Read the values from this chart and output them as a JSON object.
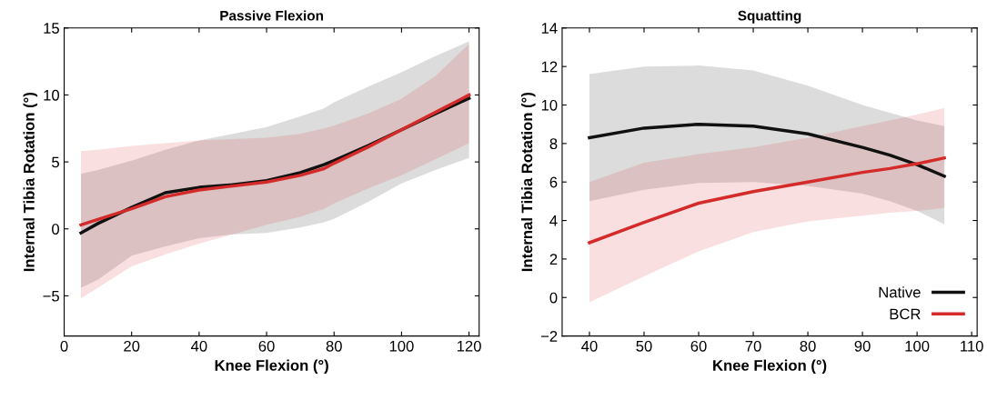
{
  "chart_data": [
    {
      "type": "line",
      "title": "Passive Flexion",
      "xlabel": "Knee Flexion (°)",
      "ylabel": "Internal Tibia Rotation (°)",
      "xlim": [
        0,
        123
      ],
      "ylim": [
        -8,
        15
      ],
      "xticks": [
        0,
        20,
        40,
        60,
        80,
        100,
        120
      ],
      "yticks": [
        {
          "value": -5,
          "label": "−5"
        },
        0,
        5,
        10,
        15
      ],
      "grid": false,
      "legend": false,
      "series": [
        {
          "color": "#111111",
          "x": [
            5,
            10,
            20,
            30,
            40,
            50,
            60,
            70,
            77,
            80,
            90,
            100,
            110,
            120
          ],
          "values": [
            -0.3,
            0.4,
            1.6,
            2.7,
            3.1,
            3.3,
            3.6,
            4.2,
            4.8,
            5.1,
            6.2,
            7.4,
            8.6,
            9.75
          ],
          "lower": [
            -4.4,
            -3.8,
            -2.0,
            -1.3,
            -0.7,
            -0.4,
            -0.3,
            0.1,
            0.5,
            0.75,
            2.0,
            3.4,
            4.4,
            5.3
          ],
          "upper": [
            4.1,
            4.4,
            5.1,
            5.9,
            6.6,
            7.1,
            7.6,
            8.4,
            9.0,
            9.45,
            10.6,
            11.7,
            12.9,
            14.0
          ]
        },
        {
          "color": "#d42a2a",
          "x": [
            5,
            10,
            20,
            30,
            40,
            50,
            60,
            70,
            77,
            80,
            90,
            100,
            110,
            120
          ],
          "values": [
            0.3,
            0.7,
            1.5,
            2.4,
            2.9,
            3.2,
            3.5,
            4.0,
            4.5,
            4.9,
            6.1,
            7.4,
            8.7,
            10.0
          ],
          "lower": [
            -5.2,
            -4.4,
            -2.8,
            -1.9,
            -1.1,
            -0.4,
            0.3,
            0.9,
            1.5,
            1.9,
            3.0,
            4.0,
            5.2,
            6.4
          ],
          "upper": [
            5.8,
            5.9,
            6.2,
            6.4,
            6.6,
            6.7,
            6.8,
            7.1,
            7.5,
            7.7,
            8.6,
            9.7,
            11.4,
            13.8
          ]
        }
      ]
    },
    {
      "type": "line",
      "title": "Squatting",
      "xlabel": "Knee Flexion (°)",
      "ylabel": "Internal Tibia Rotation (°)",
      "xlim": [
        35,
        111
      ],
      "ylim": [
        -2,
        14
      ],
      "xticks": [
        40,
        50,
        60,
        70,
        80,
        90,
        100,
        110
      ],
      "yticks": [
        {
          "value": -2,
          "label": "−2"
        },
        0,
        2,
        4,
        6,
        8,
        10,
        12,
        14
      ],
      "grid": false,
      "legend": "bottom right",
      "series": [
        {
          "name": "Native",
          "color": "#111111",
          "x": [
            40,
            50,
            60,
            70,
            80,
            90,
            95,
            100,
            105
          ],
          "values": [
            8.3,
            8.8,
            9.0,
            8.9,
            8.5,
            7.8,
            7.4,
            6.9,
            6.3
          ],
          "lower": [
            5.0,
            5.6,
            5.95,
            6.0,
            5.8,
            5.4,
            5.0,
            4.5,
            3.8
          ],
          "upper": [
            11.6,
            12.0,
            12.05,
            11.8,
            11.0,
            10.0,
            9.6,
            9.2,
            8.9
          ]
        },
        {
          "name": "BCR",
          "color": "#d42a2a",
          "x": [
            40,
            50,
            60,
            70,
            80,
            90,
            95,
            100,
            105
          ],
          "values": [
            2.85,
            3.9,
            4.9,
            5.5,
            6.0,
            6.5,
            6.7,
            6.95,
            7.25
          ],
          "lower": [
            -0.25,
            1.1,
            2.4,
            3.4,
            3.95,
            4.25,
            4.4,
            4.5,
            4.65
          ],
          "upper": [
            6.0,
            7.0,
            7.45,
            7.8,
            8.3,
            8.9,
            9.2,
            9.5,
            9.85
          ]
        }
      ]
    }
  ]
}
